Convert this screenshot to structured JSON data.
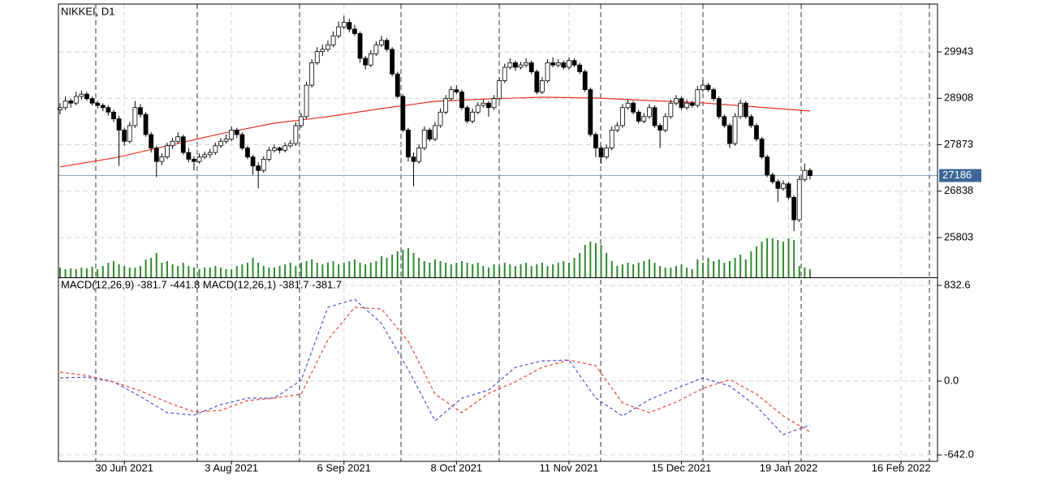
{
  "chart_data": {
    "type": "candlestick",
    "title": "NIKKEI, D1",
    "up_color": "#ffffff",
    "down_color": "#000000",
    "grid": true,
    "xlim": [
      -0.3,
      163.8
    ],
    "xticks": [
      {
        "value": 12,
        "label": "30 Jun 2021"
      },
      {
        "value": 32,
        "label": "3 Aug 2021"
      },
      {
        "value": 53,
        "label": "6 Sep 2021"
      },
      {
        "value": 74,
        "label": "8 Oct 2021"
      },
      {
        "value": 95,
        "label": "11 Nov 2021"
      },
      {
        "value": 116,
        "label": "15 Dec 2021"
      },
      {
        "value": 136,
        "label": "19 Jan 2022"
      },
      {
        "value": 157,
        "label": "16 Feb 2022"
      }
    ],
    "ylim": [
      24918,
      31009
    ],
    "yticks": [
      25803,
      26838,
      27873,
      28908,
      29943
    ],
    "current_price": 27186,
    "ohlc": [
      [
        28650,
        28800,
        28550,
        28700
      ],
      [
        28700,
        28950,
        28650,
        28850
      ],
      [
        28850,
        28900,
        28700,
        28800
      ],
      [
        28800,
        29050,
        28750,
        28950
      ],
      [
        28950,
        29080,
        28880,
        29000
      ],
      [
        29000,
        29050,
        28850,
        28900
      ],
      [
        28900,
        28950,
        28750,
        28800
      ],
      [
        28800,
        28850,
        28680,
        28750
      ],
      [
        28750,
        28800,
        28620,
        28700
      ],
      [
        28700,
        28750,
        28520,
        28600
      ],
      [
        28600,
        28650,
        28380,
        28450
      ],
      [
        28450,
        28520,
        27400,
        28200
      ],
      [
        28200,
        28250,
        27850,
        27950
      ],
      [
        27950,
        28380,
        27900,
        28300
      ],
      [
        28300,
        28850,
        28250,
        28700
      ],
      [
        28700,
        28780,
        28480,
        28550
      ],
      [
        28550,
        28600,
        28050,
        28100
      ],
      [
        28100,
        28150,
        27700,
        27800
      ],
      [
        27800,
        27850,
        27150,
        27500
      ],
      [
        27500,
        27680,
        27420,
        27600
      ],
      [
        27600,
        27920,
        27550,
        27850
      ],
      [
        27850,
        28020,
        27780,
        27950
      ],
      [
        27950,
        28150,
        27900,
        28050
      ],
      [
        28050,
        28100,
        27650,
        27700
      ],
      [
        27700,
        27800,
        27480,
        27550
      ],
      [
        27550,
        27620,
        27300,
        27500
      ],
      [
        27500,
        27680,
        27450,
        27600
      ],
      [
        27600,
        27720,
        27550,
        27650
      ],
      [
        27650,
        27780,
        27580,
        27700
      ],
      [
        27700,
        27920,
        27650,
        27850
      ],
      [
        27850,
        28020,
        27800,
        27950
      ],
      [
        27950,
        28100,
        27900,
        28000
      ],
      [
        28000,
        28280,
        27950,
        28200
      ],
      [
        28200,
        28250,
        28020,
        28100
      ],
      [
        28100,
        28150,
        27750,
        27800
      ],
      [
        27800,
        27850,
        27550,
        27600
      ],
      [
        27600,
        27650,
        27200,
        27400
      ],
      [
        27400,
        27480,
        26900,
        27300
      ],
      [
        27300,
        27620,
        27250,
        27550
      ],
      [
        27550,
        27820,
        27500,
        27750
      ],
      [
        27750,
        27880,
        27700,
        27800
      ],
      [
        27800,
        27830,
        27680,
        27750
      ],
      [
        27750,
        27920,
        27700,
        27850
      ],
      [
        27850,
        27980,
        27800,
        27900
      ],
      [
        27900,
        28380,
        27850,
        28300
      ],
      [
        28300,
        28580,
        28250,
        28500
      ],
      [
        28500,
        29280,
        28450,
        29200
      ],
      [
        29200,
        29780,
        29150,
        29700
      ],
      [
        29700,
        30050,
        29650,
        29950
      ],
      [
        29950,
        30100,
        29850,
        30000
      ],
      [
        30000,
        30200,
        29950,
        30100
      ],
      [
        30100,
        30400,
        30050,
        30300
      ],
      [
        30300,
        30620,
        30250,
        30500
      ],
      [
        30500,
        30750,
        30450,
        30600
      ],
      [
        30600,
        30680,
        30380,
        30450
      ],
      [
        30450,
        30550,
        30300,
        30350
      ],
      [
        30350,
        30400,
        29700,
        29800
      ],
      [
        29800,
        29850,
        29550,
        29650
      ],
      [
        29650,
        29980,
        29600,
        29900
      ],
      [
        29900,
        30180,
        29850,
        30100
      ],
      [
        30100,
        30300,
        30050,
        30200
      ],
      [
        30200,
        30250,
        29950,
        30000
      ],
      [
        30000,
        30050,
        29400,
        29450
      ],
      [
        29450,
        29500,
        28900,
        28950
      ],
      [
        28950,
        29000,
        28150,
        28200
      ],
      [
        28200,
        28250,
        27500,
        27600
      ],
      [
        27600,
        27700,
        26950,
        27500
      ],
      [
        27500,
        27880,
        27450,
        27800
      ],
      [
        27800,
        28280,
        27750,
        28200
      ],
      [
        28200,
        28250,
        27950,
        28000
      ],
      [
        28000,
        28380,
        27950,
        28300
      ],
      [
        28300,
        28680,
        28250,
        28600
      ],
      [
        28600,
        28980,
        28550,
        28900
      ],
      [
        28900,
        29180,
        28850,
        29100
      ],
      [
        29100,
        29200,
        29000,
        29050
      ],
      [
        29050,
        29100,
        28650,
        28700
      ],
      [
        28700,
        28750,
        28350,
        28400
      ],
      [
        28400,
        28680,
        28350,
        28600
      ],
      [
        28600,
        28820,
        28550,
        28750
      ],
      [
        28750,
        28880,
        28700,
        28800
      ],
      [
        28800,
        28850,
        28500,
        28700
      ],
      [
        28700,
        28980,
        28650,
        28900
      ],
      [
        28900,
        29380,
        28850,
        29300
      ],
      [
        29300,
        29680,
        29250,
        29600
      ],
      [
        29600,
        29800,
        29550,
        29700
      ],
      [
        29700,
        29750,
        29520,
        29600
      ],
      [
        29600,
        29720,
        29550,
        29650
      ],
      [
        29650,
        29800,
        29600,
        29700
      ],
      [
        29700,
        29750,
        29450,
        29500
      ],
      [
        29500,
        29550,
        29000,
        29050
      ],
      [
        29050,
        29380,
        29000,
        29300
      ],
      [
        29300,
        29780,
        29250,
        29700
      ],
      [
        29700,
        29820,
        29600,
        29650
      ],
      [
        29650,
        29780,
        29600,
        29700
      ],
      [
        29700,
        29750,
        29550,
        29600
      ],
      [
        29600,
        29820,
        29550,
        29750
      ],
      [
        29750,
        29800,
        29600,
        29650
      ],
      [
        29650,
        29700,
        29450,
        29500
      ],
      [
        29500,
        29550,
        29050,
        29100
      ],
      [
        29100,
        29150,
        28050,
        28100
      ],
      [
        28100,
        28150,
        27600,
        27800
      ],
      [
        27800,
        27850,
        27450,
        27600
      ],
      [
        27600,
        27880,
        27550,
        27800
      ],
      [
        27800,
        28280,
        27750,
        28200
      ],
      [
        28200,
        28380,
        28150,
        28300
      ],
      [
        28300,
        28780,
        28250,
        28700
      ],
      [
        28700,
        28880,
        28650,
        28800
      ],
      [
        28800,
        28850,
        28550,
        28600
      ],
      [
        28600,
        28650,
        28350,
        28400
      ],
      [
        28400,
        28580,
        28350,
        28500
      ],
      [
        28500,
        28780,
        28450,
        28700
      ],
      [
        28700,
        28750,
        28250,
        28300
      ],
      [
        28300,
        28350,
        27800,
        28200
      ],
      [
        28200,
        28580,
        28150,
        28500
      ],
      [
        28500,
        28880,
        28450,
        28800
      ],
      [
        28800,
        28980,
        28750,
        28900
      ],
      [
        28900,
        28950,
        28650,
        28700
      ],
      [
        28700,
        28880,
        28650,
        28800
      ],
      [
        28800,
        28850,
        28700,
        28750
      ],
      [
        28750,
        29180,
        28700,
        29100
      ],
      [
        29100,
        29320,
        29050,
        29200
      ],
      [
        29200,
        29250,
        29050,
        29100
      ],
      [
        29100,
        29150,
        28850,
        28900
      ],
      [
        28900,
        28950,
        28450,
        28500
      ],
      [
        28500,
        28550,
        28250,
        28300
      ],
      [
        28300,
        28350,
        27800,
        27900
      ],
      [
        27900,
        28580,
        27850,
        28500
      ],
      [
        28500,
        28880,
        28450,
        28800
      ],
      [
        28800,
        28850,
        28450,
        28500
      ],
      [
        28500,
        28550,
        28250,
        28300
      ],
      [
        28300,
        28350,
        27950,
        28000
      ],
      [
        28000,
        28050,
        27550,
        27600
      ],
      [
        27600,
        27650,
        27150,
        27200
      ],
      [
        27200,
        27250,
        27000,
        27050
      ],
      [
        27050,
        27100,
        26600,
        26900
      ],
      [
        26900,
        27080,
        26850,
        27000
      ],
      [
        27000,
        27050,
        26650,
        26700
      ],
      [
        26700,
        26750,
        25950,
        26200
      ],
      [
        26200,
        27180,
        26150,
        27100
      ],
      [
        27100,
        27450,
        27050,
        27300
      ],
      [
        27300,
        27350,
        27100,
        27186
      ]
    ],
    "ma": {
      "color": "#e8322b",
      "x": [
        0,
        10,
        20,
        30,
        40,
        50,
        60,
        70,
        80,
        90,
        100,
        110,
        120,
        130,
        140
      ],
      "values": [
        27379,
        27577,
        27848,
        28119,
        28354,
        28498,
        28679,
        28841,
        28895,
        28932,
        28914,
        28859,
        28805,
        28715,
        28625
      ]
    },
    "volume": {
      "color": "#2e8b2e",
      "ylim": [
        0,
        100
      ],
      "values": [
        12,
        10,
        11,
        10,
        12,
        11,
        13,
        10,
        14,
        18,
        20,
        16,
        14,
        12,
        12,
        14,
        22,
        24,
        30,
        18,
        20,
        16,
        14,
        18,
        14,
        12,
        10,
        12,
        12,
        14,
        12,
        10,
        10,
        14,
        16,
        18,
        24,
        18,
        14,
        12,
        12,
        14,
        16,
        18,
        14,
        18,
        20,
        22,
        18,
        16,
        18,
        20,
        16,
        18,
        20,
        22,
        18,
        16,
        18,
        20,
        26,
        24,
        28,
        32,
        34,
        36,
        30,
        24,
        20,
        18,
        22,
        20,
        18,
        16,
        18,
        20,
        18,
        16,
        18,
        14,
        12,
        16,
        14,
        18,
        16,
        14,
        16,
        18,
        14,
        16,
        18,
        14,
        16,
        18,
        20,
        18,
        24,
        30,
        40,
        44,
        42,
        40,
        30,
        20,
        14,
        16,
        18,
        16,
        18,
        20,
        22,
        18,
        14,
        12,
        12,
        14,
        16,
        12,
        10,
        22,
        18,
        24,
        20,
        22,
        18,
        20,
        24,
        28,
        22,
        32,
        38,
        44,
        48,
        48,
        46,
        44,
        48,
        46,
        14,
        12,
        10
      ]
    },
    "macd": {
      "legend": "MACD(12,26,9) -381.7 -441.8 MACD(12,26,1) -381.7 -381.7",
      "ylim": [
        -698,
        889
      ],
      "yticks": [
        832.6,
        {
          "value": 0,
          "label": "0.0"
        },
        {
          "value": -642,
          "label": "-642.0"
        }
      ],
      "x": [
        0,
        5,
        10,
        15,
        20,
        25,
        30,
        35,
        40,
        45,
        50,
        55,
        60,
        65,
        70,
        75,
        80,
        85,
        90,
        95,
        100,
        105,
        110,
        115,
        120,
        125,
        130,
        135,
        140
      ],
      "series": [
        {
          "color": "#4a57d4",
          "values": [
            28,
            35,
            -7,
            -134,
            -275,
            -296,
            -204,
            -148,
            -148,
            7,
            642,
            712,
            501,
            99,
            -345,
            -148,
            -78,
            120,
            176,
            183,
            -148,
            -303,
            -162,
            -63,
            28,
            -42,
            -219,
            -465,
            -381.7
          ]
        },
        {
          "color": "#e8473b",
          "values": [
            78,
            49,
            -7,
            -85,
            -183,
            -268,
            -254,
            -169,
            -148,
            -113,
            360,
            642,
            627,
            346,
            -113,
            -275,
            -106,
            -7,
            120,
            183,
            134,
            -190,
            -275,
            -183,
            -63,
            14,
            -113,
            -303,
            -441.8
          ]
        }
      ]
    }
  }
}
